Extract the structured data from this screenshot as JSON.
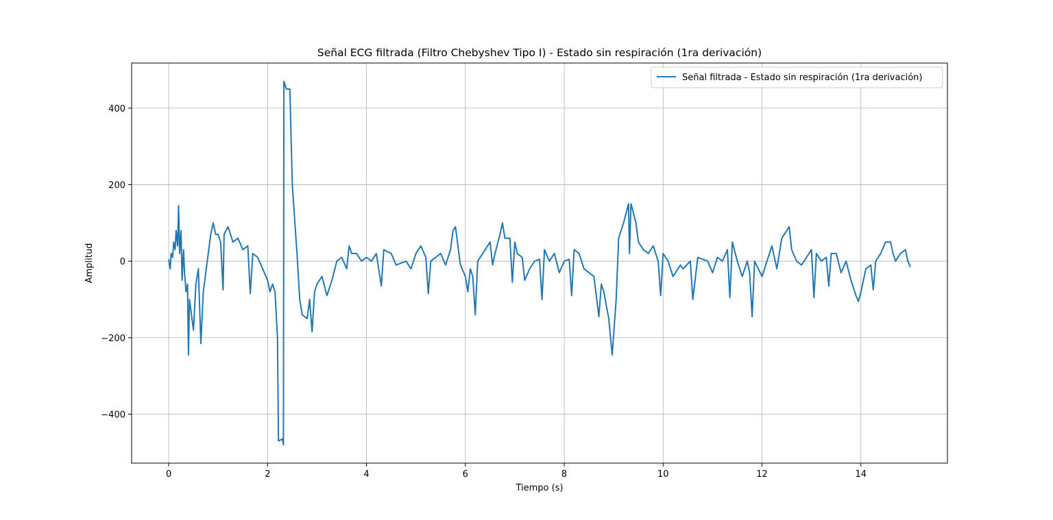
{
  "chart_data": {
    "type": "line",
    "title": "Señal ECG filtrada (Filtro Chebyshev Tipo I) - Estado sin respiración (1ra derivación)",
    "x_label": "Tiempo (s)",
    "y_label": "Amplitud",
    "xlim": [
      -0.75,
      15.75
    ],
    "ylim": [
      -528,
      518
    ],
    "xticks": [
      0,
      2,
      4,
      6,
      8,
      10,
      12,
      14
    ],
    "yticks": [
      {
        "value": -400,
        "label": "−400"
      },
      {
        "value": -200,
        "label": "−200"
      },
      0,
      200,
      400
    ],
    "grid": true,
    "legend": "upper right",
    "x": [
      0,
      0.03,
      0.05,
      0.08,
      0.1,
      0.13,
      0.15,
      0.18,
      0.2,
      0.22,
      0.25,
      0.27,
      0.3,
      0.32,
      0.35,
      0.38,
      0.4,
      0.42,
      0.45,
      0.5,
      0.55,
      0.6,
      0.65,
      0.7,
      0.8,
      0.85,
      0.9,
      0.95,
      1.0,
      1.05,
      1.1,
      1.12,
      1.2,
      1.3,
      1.4,
      1.5,
      1.6,
      1.65,
      1.7,
      1.8,
      1.9,
      2.0,
      2.05,
      2.1,
      2.15,
      2.2,
      2.22,
      2.3,
      2.32,
      2.33,
      2.38,
      2.45,
      2.5,
      2.6,
      2.65,
      2.7,
      2.8,
      2.85,
      2.9,
      2.95,
      3.0,
      3.1,
      3.2,
      3.3,
      3.4,
      3.5,
      3.6,
      3.65,
      3.7,
      3.8,
      3.9,
      4.0,
      4.1,
      4.2,
      4.3,
      4.35,
      4.5,
      4.6,
      4.8,
      4.9,
      5.0,
      5.1,
      5.2,
      5.25,
      5.3,
      5.5,
      5.6,
      5.7,
      5.75,
      5.8,
      5.85,
      5.9,
      6.0,
      6.05,
      6.1,
      6.15,
      6.2,
      6.25,
      6.4,
      6.5,
      6.55,
      6.6,
      6.7,
      6.75,
      6.8,
      6.9,
      6.95,
      7.0,
      7.05,
      7.15,
      7.2,
      7.3,
      7.4,
      7.5,
      7.55,
      7.6,
      7.7,
      7.8,
      7.9,
      8.0,
      8.1,
      8.15,
      8.2,
      8.3,
      8.4,
      8.5,
      8.6,
      8.7,
      8.75,
      8.8,
      8.9,
      8.97,
      9.05,
      9.1,
      9.2,
      9.3,
      9.32,
      9.35,
      9.45,
      9.5,
      9.6,
      9.7,
      9.8,
      9.9,
      9.95,
      10.0,
      10.1,
      10.2,
      10.35,
      10.4,
      10.55,
      10.6,
      10.7,
      10.9,
      11.0,
      11.1,
      11.2,
      11.3,
      11.35,
      11.4,
      11.5,
      11.6,
      11.7,
      11.75,
      11.8,
      11.85,
      12.0,
      12.1,
      12.2,
      12.3,
      12.4,
      12.5,
      12.55,
      12.6,
      12.7,
      12.8,
      12.9,
      13.0,
      13.05,
      13.1,
      13.2,
      13.3,
      13.35,
      13.4,
      13.5,
      13.6,
      13.7,
      13.8,
      13.9,
      13.95,
      14.0,
      14.1,
      14.2,
      14.25,
      14.3,
      14.4,
      14.5,
      14.6,
      14.65,
      14.7,
      14.8,
      14.9,
      14.95,
      15.0
    ],
    "series": [
      {
        "name": "Señal filtrada - Estado sin respiración (1ra derivación)",
        "color": "#1f77b4",
        "values": [
          5,
          -20,
          20,
          10,
          50,
          30,
          80,
          40,
          145,
          20,
          80,
          -50,
          30,
          -30,
          -80,
          -60,
          -245,
          -100,
          -130,
          -180,
          -60,
          -20,
          -215,
          -80,
          20,
          70,
          100,
          70,
          70,
          50,
          -75,
          70,
          90,
          50,
          60,
          30,
          40,
          -85,
          20,
          10,
          -20,
          -50,
          -80,
          -60,
          -80,
          -200,
          -470,
          -465,
          -480,
          470,
          450,
          450,
          200,
          10,
          -100,
          -140,
          -150,
          -100,
          -185,
          -80,
          -60,
          -40,
          -90,
          -50,
          0,
          10,
          -20,
          40,
          20,
          20,
          0,
          10,
          0,
          20,
          -65,
          30,
          20,
          -10,
          0,
          -20,
          20,
          40,
          10,
          -85,
          0,
          20,
          -10,
          30,
          80,
          90,
          40,
          -10,
          -40,
          -80,
          -20,
          -40,
          -140,
          0,
          30,
          50,
          -10,
          20,
          70,
          100,
          60,
          60,
          -55,
          50,
          20,
          10,
          -50,
          -20,
          0,
          5,
          -100,
          30,
          0,
          20,
          -30,
          0,
          5,
          -90,
          30,
          20,
          -20,
          -30,
          -40,
          -145,
          -60,
          -80,
          -150,
          -245,
          -100,
          60,
          100,
          150,
          20,
          150,
          100,
          50,
          30,
          20,
          40,
          0,
          -90,
          20,
          0,
          -40,
          -10,
          -20,
          0,
          -100,
          10,
          0,
          -30,
          10,
          0,
          30,
          -95,
          50,
          0,
          -40,
          0,
          -30,
          -145,
          0,
          -40,
          0,
          40,
          -20,
          60,
          80,
          90,
          30,
          0,
          -10,
          10,
          30,
          -95,
          20,
          0,
          10,
          -65,
          20,
          20,
          -30,
          0,
          -50,
          -90,
          -105,
          -80,
          -20,
          -10,
          -75,
          0,
          20,
          50,
          50,
          20,
          0,
          20,
          30,
          0,
          -15
        ]
      }
    ]
  }
}
